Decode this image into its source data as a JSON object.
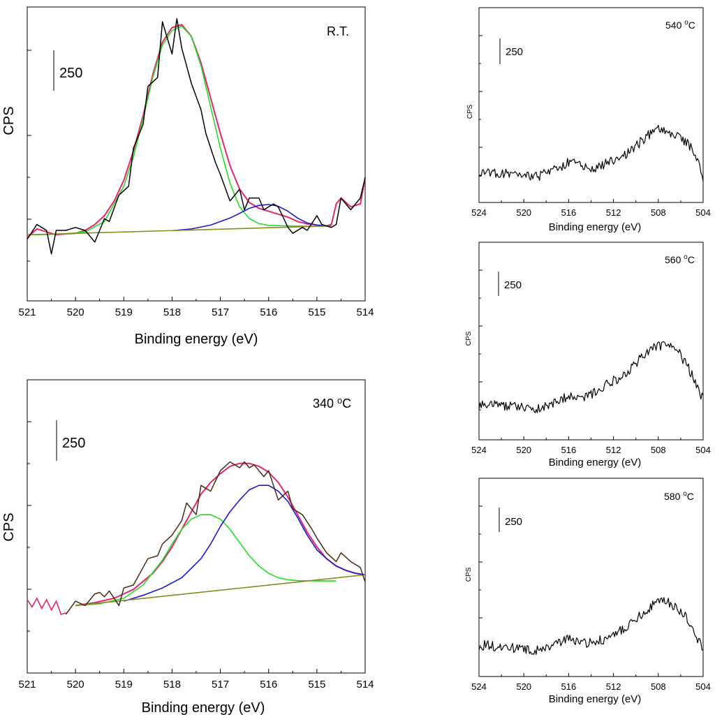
{
  "chart_data": [
    {
      "type": "line",
      "annotation": "R.T.",
      "scale_bar_label": "250",
      "xlabel": "Binding energy (eV)",
      "ylabel": "CPS",
      "xlim": [
        521,
        514
      ],
      "ylim": [
        0,
        1000
      ],
      "x_ticks": [
        "521",
        "520",
        "519",
        "518",
        "517",
        "516",
        "515",
        "514"
      ],
      "colors": {
        "raw": "#000000",
        "envelope": "#e8236e",
        "peak1": "#22dd22",
        "peak2": "#1a1acc",
        "background": "#8a8a1e"
      },
      "raw": {
        "x": [
          521.0,
          520.8,
          520.6,
          520.5,
          520.4,
          520.2,
          520.0,
          519.8,
          519.6,
          519.4,
          519.3,
          519.1,
          518.9,
          518.8,
          518.6,
          518.5,
          518.3,
          518.2,
          518.0,
          517.9,
          517.8,
          517.6,
          517.4,
          517.3,
          517.1,
          517.0,
          516.8,
          516.6,
          516.5,
          516.4,
          516.2,
          516.1,
          515.9,
          515.8,
          515.6,
          515.5,
          515.3,
          515.2,
          515.0,
          514.9,
          514.7,
          514.6,
          514.5,
          514.3,
          514.1,
          514.0
        ],
        "y": [
          210,
          260,
          240,
          160,
          240,
          240,
          250,
          240,
          200,
          280,
          270,
          360,
          390,
          520,
          600,
          730,
          760,
          950,
          840,
          960,
          860,
          740,
          650,
          570,
          470,
          430,
          340,
          380,
          310,
          350,
          350,
          310,
          330,
          320,
          250,
          230,
          250,
          240,
          290,
          260,
          250,
          260,
          350,
          310,
          350,
          420
        ]
      },
      "series": [
        {
          "name": "envelope",
          "x": [
            521.0,
            520.8,
            520.6,
            520.4,
            520.2,
            520.0,
            519.8,
            519.6,
            519.4,
            519.2,
            519.0,
            518.8,
            518.6,
            518.4,
            518.2,
            518.0,
            517.8,
            517.6,
            517.4,
            517.2,
            517.0,
            516.8,
            516.6,
            516.4,
            516.2,
            516.0,
            515.8,
            515.6,
            515.4,
            515.2,
            515.0,
            514.8,
            514.7,
            514.6,
            514.5,
            514.3,
            514.1,
            514.0
          ],
          "y": [
            215,
            245,
            235,
            225,
            228,
            230,
            240,
            260,
            290,
            340,
            410,
            510,
            630,
            770,
            880,
            930,
            940,
            900,
            810,
            690,
            570,
            460,
            380,
            335,
            315,
            305,
            295,
            285,
            270,
            262,
            258,
            255,
            260,
            330,
            350,
            320,
            330,
            420
          ]
        },
        {
          "name": "peak1",
          "x": [
            521.0,
            520.6,
            520.2,
            519.8,
            519.4,
            519.0,
            518.8,
            518.6,
            518.4,
            518.2,
            518.0,
            517.8,
            517.6,
            517.4,
            517.2,
            517.0,
            516.8,
            516.6,
            516.4,
            516.2,
            516.0,
            515.6,
            515.2,
            514.8
          ],
          "y": [
            225,
            226,
            228,
            235,
            270,
            390,
            490,
            620,
            760,
            870,
            920,
            935,
            900,
            800,
            660,
            520,
            400,
            320,
            280,
            263,
            257,
            255,
            254,
            254
          ]
        },
        {
          "name": "peak2",
          "x": [
            518.0,
            517.6,
            517.2,
            516.8,
            516.6,
            516.4,
            516.2,
            516.0,
            515.8,
            515.6,
            515.4,
            515.2,
            515.0,
            514.8,
            514.7
          ],
          "y": [
            239,
            245,
            258,
            282,
            298,
            315,
            325,
            328,
            322,
            305,
            282,
            265,
            258,
            255,
            255
          ]
        },
        {
          "name": "background",
          "x": [
            521.0,
            514.7
          ],
          "y": [
            225,
            255
          ]
        }
      ]
    },
    {
      "type": "line",
      "annotation": "340 °C",
      "scale_bar_label": "250",
      "xlabel": "Binding energy (eV)",
      "ylabel": "CPS",
      "xlim": [
        521,
        514
      ],
      "ylim": [
        0,
        1000
      ],
      "x_ticks": [
        "521",
        "520",
        "519",
        "518",
        "517",
        "516",
        "515",
        "514"
      ],
      "colors": {
        "raw": "#4a2a12",
        "envelope": "#e8236e",
        "peak1": "#22dd22",
        "peak2": "#1a1acc",
        "background": "#8a8a1e"
      },
      "raw": {
        "x": [
          520.2,
          520.0,
          519.8,
          519.6,
          519.5,
          519.4,
          519.3,
          519.1,
          519.0,
          518.8,
          518.7,
          518.5,
          518.3,
          518.2,
          518.0,
          517.8,
          517.7,
          517.5,
          517.4,
          517.2,
          517.0,
          516.8,
          516.6,
          516.5,
          516.4,
          516.3,
          516.1,
          516.0,
          515.8,
          515.6,
          515.5,
          515.3,
          515.1,
          515.0,
          514.8,
          514.6,
          514.5,
          514.3,
          514.1,
          514.0
        ],
        "y": [
          200,
          245,
          230,
          270,
          275,
          260,
          280,
          230,
          290,
          300,
          330,
          390,
          400,
          440,
          470,
          520,
          580,
          540,
          640,
          620,
          690,
          720,
          700,
          720,
          700,
          710,
          670,
          690,
          590,
          620,
          560,
          540,
          490,
          460,
          410,
          380,
          410,
          380,
          360,
          310
        ]
      },
      "extra_raw": {
        "color": "#e8236e",
        "x": [
          521.0,
          520.9,
          520.8,
          520.7,
          520.6,
          520.5,
          520.4,
          520.3,
          520.2
        ],
        "y": [
          250,
          225,
          255,
          220,
          250,
          215,
          245,
          200,
          205
        ]
      },
      "series": [
        {
          "name": "envelope",
          "x": [
            520.0,
            519.6,
            519.2,
            518.8,
            518.4,
            518.2,
            518.0,
            517.8,
            517.6,
            517.4,
            517.2,
            517.0,
            516.8,
            516.6,
            516.4,
            516.2,
            516.0,
            515.8,
            515.6,
            515.4,
            515.2,
            515.0,
            514.8,
            514.6,
            514.4,
            514.2,
            514.0
          ],
          "y": [
            230,
            240,
            255,
            285,
            340,
            380,
            430,
            490,
            550,
            610,
            650,
            680,
            705,
            715,
            715,
            705,
            685,
            650,
            600,
            540,
            480,
            430,
            390,
            365,
            350,
            340,
            335
          ]
        },
        {
          "name": "peak1",
          "x": [
            520.0,
            519.5,
            519.0,
            518.6,
            518.2,
            518.0,
            517.8,
            517.6,
            517.4,
            517.2,
            517.0,
            516.8,
            516.6,
            516.4,
            516.2,
            516.0,
            515.8,
            515.6,
            515.4,
            515.0,
            514.6
          ],
          "y": [
            230,
            236,
            255,
            300,
            385,
            440,
            490,
            525,
            540,
            540,
            525,
            490,
            445,
            400,
            365,
            340,
            325,
            318,
            315,
            314,
            314
          ]
        },
        {
          "name": "peak2",
          "x": [
            519.0,
            518.6,
            518.2,
            517.8,
            517.4,
            517.2,
            517.0,
            516.8,
            516.6,
            516.4,
            516.2,
            516.0,
            515.8,
            515.6,
            515.4,
            515.2,
            515.0,
            514.8,
            514.6,
            514.4,
            514.2,
            514.0
          ],
          "y": [
            245,
            265,
            290,
            325,
            390,
            440,
            500,
            550,
            590,
            625,
            640,
            640,
            620,
            585,
            530,
            470,
            420,
            390,
            365,
            350,
            340,
            335
          ]
        },
        {
          "name": "background",
          "x": [
            520.0,
            514.0
          ],
          "y": [
            230,
            335
          ]
        }
      ]
    },
    {
      "type": "line",
      "annotation": "540 °C",
      "scale_bar_label": "250",
      "xlabel": "Binding energy (eV)",
      "ylabel": "CPS",
      "xlim": [
        524,
        504
      ],
      "ylim": [
        0,
        1000
      ],
      "x_ticks": [
        "524",
        "520",
        "516",
        "512",
        "508",
        "504"
      ],
      "colors": {
        "raw": "#000000"
      },
      "seed": 540,
      "keypoints": {
        "x": [
          524,
          522,
          520,
          519,
          518,
          517,
          516,
          515,
          514,
          513,
          512,
          511,
          510,
          509,
          508,
          507,
          506,
          505,
          504.5,
          504
        ],
        "y": [
          160,
          150,
          145,
          130,
          150,
          170,
          210,
          190,
          175,
          190,
          215,
          240,
          290,
          340,
          380,
          350,
          330,
          280,
          220,
          130
        ]
      }
    },
    {
      "type": "line",
      "annotation": "560 °C",
      "scale_bar_label": "250",
      "xlabel": "Binding energy (eV)",
      "ylabel": "CPS",
      "xlim": [
        524,
        504
      ],
      "ylim": [
        0,
        1000
      ],
      "x_ticks": [
        "524",
        "520",
        "516",
        "512",
        "508",
        "504"
      ],
      "colors": {
        "raw": "#000000"
      },
      "seed": 560,
      "keypoints": {
        "x": [
          524,
          522,
          520,
          519,
          518,
          517,
          516,
          515,
          514,
          513,
          512,
          511,
          510,
          509,
          508,
          507,
          506,
          505,
          504.5,
          504
        ],
        "y": [
          180,
          175,
          160,
          150,
          170,
          200,
          220,
          215,
          230,
          270,
          300,
          330,
          390,
          440,
          480,
          470,
          430,
          330,
          260,
          210
        ]
      }
    },
    {
      "type": "line",
      "annotation": "580 °C",
      "scale_bar_label": "250",
      "xlabel": "Binding energy (eV)",
      "ylabel": "CPS",
      "xlim": [
        524,
        504
      ],
      "ylim": [
        0,
        1000
      ],
      "x_ticks": [
        "524",
        "520",
        "516",
        "512",
        "508",
        "504"
      ],
      "colors": {
        "raw": "#000000"
      },
      "seed": 580,
      "keypoints": {
        "x": [
          524,
          522,
          520,
          519,
          518,
          517,
          516,
          515,
          514,
          513,
          512,
          511,
          510,
          509,
          508,
          507,
          506,
          505,
          504.5,
          504
        ],
        "y": [
          160,
          150,
          135,
          130,
          150,
          170,
          200,
          175,
          170,
          185,
          210,
          240,
          290,
          335,
          380,
          370,
          330,
          260,
          190,
          130
        ]
      }
    }
  ]
}
